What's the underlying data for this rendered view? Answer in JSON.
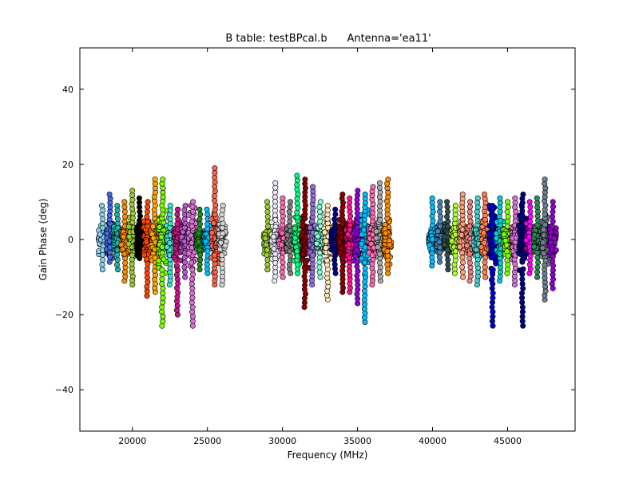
{
  "chart_data": {
    "type": "scatter",
    "title": "B table: testBPcal.b      Antenna='ea11'",
    "xlabel": "Frequency (MHz)",
    "ylabel": "Gain Phase (deg)",
    "xlim": [
      16500,
      49500
    ],
    "ylim": [
      -51,
      51
    ],
    "xticks": [
      20000,
      25000,
      30000,
      35000,
      40000,
      45000
    ],
    "yticks": [
      -40,
      -20,
      0,
      20,
      40
    ],
    "xtick_labels": [
      "20000",
      "25000",
      "30000",
      "35000",
      "40000",
      "45000"
    ],
    "ytick_labels": [
      "−40",
      "−20",
      "0",
      "20",
      "40"
    ],
    "grid": false,
    "legend": "none",
    "bands": [
      {
        "x_start": 18000,
        "x_end": 26000,
        "y_min": -23,
        "y_max": 19
      },
      {
        "x_start": 29000,
        "x_end": 37000,
        "y_min": -22,
        "y_max": 17
      },
      {
        "x_start": 40000,
        "x_end": 48000,
        "y_min": -23,
        "y_max": 16
      }
    ],
    "series": [
      {
        "x": 18000,
        "y_min": -8,
        "y_max": 9,
        "color": "#87ceeb"
      },
      {
        "x": 18500,
        "y_min": -6,
        "y_max": 12,
        "color": "#4169e1"
      },
      {
        "x": 19000,
        "y_min": -8,
        "y_max": 9,
        "color": "#20b2aa"
      },
      {
        "x": 19500,
        "y_min": -11,
        "y_max": 10,
        "color": "#ff8c00"
      },
      {
        "x": 20000,
        "y_min": -12,
        "y_max": 13,
        "color": "#9acd32"
      },
      {
        "x": 20500,
        "y_min": -5,
        "y_max": 11,
        "color": "#000000"
      },
      {
        "x": 21000,
        "y_min": -15,
        "y_max": 10,
        "color": "#ff4500"
      },
      {
        "x": 21500,
        "y_min": -14,
        "y_max": 16,
        "color": "#ffa500"
      },
      {
        "x": 22000,
        "y_min": -23,
        "y_max": 16,
        "color": "#7cfc00"
      },
      {
        "x": 22500,
        "y_min": -12,
        "y_max": 9,
        "color": "#40e0d0"
      },
      {
        "x": 23000,
        "y_min": -20,
        "y_max": 8,
        "color": "#c71585"
      },
      {
        "x": 23500,
        "y_min": -10,
        "y_max": 9,
        "color": "#ba55d3"
      },
      {
        "x": 24000,
        "y_min": -23,
        "y_max": 10,
        "color": "#da70d6"
      },
      {
        "x": 24500,
        "y_min": -8,
        "y_max": 8,
        "color": "#228b22"
      },
      {
        "x": 25000,
        "y_min": -9,
        "y_max": 8,
        "color": "#00bfff"
      },
      {
        "x": 25500,
        "y_min": -12,
        "y_max": 19,
        "color": "#ff6347"
      },
      {
        "x": 26000,
        "y_min": -12,
        "y_max": 9,
        "color": "#d3d3d3"
      },
      {
        "x": 29000,
        "y_min": -8,
        "y_max": 10,
        "color": "#9acd32"
      },
      {
        "x": 29500,
        "y_min": -11,
        "y_max": 15,
        "color": "#e6e6fa"
      },
      {
        "x": 30000,
        "y_min": -10,
        "y_max": 11,
        "color": "#ff69b4"
      },
      {
        "x": 30500,
        "y_min": -9,
        "y_max": 10,
        "color": "#808080"
      },
      {
        "x": 31000,
        "y_min": -9,
        "y_max": 17,
        "color": "#00ff7f"
      },
      {
        "x": 31500,
        "y_min": -18,
        "y_max": 16,
        "color": "#8b0000"
      },
      {
        "x": 32000,
        "y_min": -12,
        "y_max": 14,
        "color": "#9370db"
      },
      {
        "x": 32500,
        "y_min": -10,
        "y_max": 10,
        "color": "#7fffd4"
      },
      {
        "x": 33000,
        "y_min": -16,
        "y_max": 9,
        "color": "#ffe4b5"
      },
      {
        "x": 33500,
        "y_min": -9,
        "y_max": 8,
        "color": "#00008b"
      },
      {
        "x": 34000,
        "y_min": -14,
        "y_max": 12,
        "color": "#8b0000"
      },
      {
        "x": 34500,
        "y_min": -14,
        "y_max": 11,
        "color": "#ff1493"
      },
      {
        "x": 35000,
        "y_min": -17,
        "y_max": 13,
        "color": "#9400d3"
      },
      {
        "x": 35500,
        "y_min": -22,
        "y_max": 12,
        "color": "#00bfff"
      },
      {
        "x": 36000,
        "y_min": -12,
        "y_max": 14,
        "color": "#ff69b4"
      },
      {
        "x": 36500,
        "y_min": -11,
        "y_max": 15,
        "color": "#a9a9a9"
      },
      {
        "x": 37000,
        "y_min": -9,
        "y_max": 16,
        "color": "#ff8c00"
      },
      {
        "x": 40000,
        "y_min": -7,
        "y_max": 11,
        "color": "#00bfff"
      },
      {
        "x": 40500,
        "y_min": -6,
        "y_max": 10,
        "color": "#4682b4"
      },
      {
        "x": 41000,
        "y_min": -8,
        "y_max": 10,
        "color": "#2f4f4f"
      },
      {
        "x": 41500,
        "y_min": -9,
        "y_max": 9,
        "color": "#adff2f"
      },
      {
        "x": 42000,
        "y_min": -10,
        "y_max": 12,
        "color": "#ffa07a"
      },
      {
        "x": 42500,
        "y_min": -11,
        "y_max": 10,
        "color": "#f08080"
      },
      {
        "x": 43000,
        "y_min": -12,
        "y_max": 11,
        "color": "#48d1cc"
      },
      {
        "x": 43500,
        "y_min": -10,
        "y_max": 12,
        "color": "#ff7f50"
      },
      {
        "x": 44000,
        "y_min": -23,
        "y_max": 9,
        "color": "#0000cd"
      },
      {
        "x": 44500,
        "y_min": -11,
        "y_max": 11,
        "color": "#00ced1"
      },
      {
        "x": 45000,
        "y_min": -9,
        "y_max": 10,
        "color": "#7fff00"
      },
      {
        "x": 45500,
        "y_min": -12,
        "y_max": 11,
        "color": "#da70d6"
      },
      {
        "x": 46000,
        "y_min": -23,
        "y_max": 12,
        "color": "#000080"
      },
      {
        "x": 46500,
        "y_min": -9,
        "y_max": 10,
        "color": "#ff00ff"
      },
      {
        "x": 47000,
        "y_min": -10,
        "y_max": 11,
        "color": "#2e8b57"
      },
      {
        "x": 47500,
        "y_min": -16,
        "y_max": 16,
        "color": "#708090"
      },
      {
        "x": 48000,
        "y_min": -13,
        "y_max": 10,
        "color": "#9400d3"
      }
    ]
  }
}
